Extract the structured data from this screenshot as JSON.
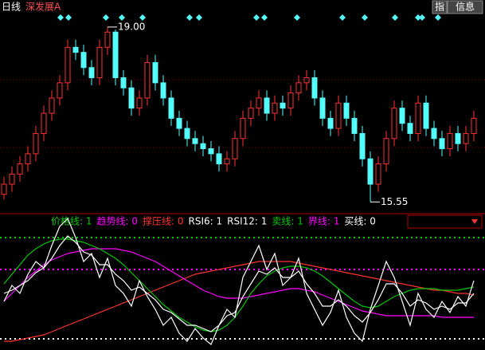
{
  "top_bar": {
    "period": "日线",
    "stock": "深发展A",
    "buttons": [
      "指",
      "信息"
    ]
  },
  "chart_data": [
    {
      "type": "candlestick",
      "up_color": "#ff3232",
      "down_color": "#54fcfc",
      "ylim": [
        15.35,
        19.25
      ],
      "open": [
        15.7,
        15.9,
        16.1,
        16.3,
        16.5,
        16.9,
        17.3,
        17.6,
        17.9,
        18.6,
        18.5,
        18.2,
        18.0,
        18.6,
        18.9,
        18.0,
        17.8,
        17.4,
        17.6,
        18.3,
        17.9,
        17.6,
        17.2,
        17.0,
        16.8,
        16.7,
        16.6,
        16.5,
        16.3,
        16.4,
        16.8,
        17.2,
        17.4,
        17.6,
        17.3,
        17.5,
        17.4,
        17.7,
        17.9,
        18.0,
        17.6,
        17.2,
        17.0,
        17.5,
        17.2,
        16.9,
        16.4,
        15.9,
        16.3,
        16.8,
        17.4,
        17.1,
        16.9,
        17.5,
        17.0,
        16.8,
        16.6,
        16.9,
        16.7,
        16.9
      ],
      "high": [
        16.05,
        16.25,
        16.45,
        16.65,
        17.05,
        17.45,
        17.75,
        18.05,
        18.75,
        18.75,
        18.65,
        18.35,
        18.75,
        19.0,
        18.95,
        18.15,
        17.95,
        17.75,
        18.45,
        18.45,
        18.05,
        17.75,
        17.35,
        17.15,
        16.95,
        16.85,
        16.75,
        16.65,
        16.55,
        16.95,
        17.35,
        17.55,
        17.75,
        17.75,
        17.65,
        17.65,
        17.85,
        18.05,
        18.15,
        18.15,
        17.75,
        17.35,
        17.65,
        17.65,
        17.35,
        17.05,
        16.55,
        16.45,
        16.95,
        17.55,
        17.55,
        17.25,
        17.65,
        17.65,
        17.15,
        16.95,
        17.05,
        17.05,
        17.05,
        17.35
      ],
      "low": [
        15.6,
        15.75,
        15.95,
        16.15,
        16.35,
        16.75,
        17.15,
        17.45,
        17.75,
        18.35,
        18.05,
        17.85,
        17.85,
        18.45,
        17.85,
        17.65,
        17.25,
        17.25,
        17.45,
        17.75,
        17.45,
        17.05,
        16.85,
        16.65,
        16.55,
        16.45,
        16.35,
        16.15,
        16.15,
        16.25,
        16.65,
        17.05,
        17.25,
        17.15,
        17.15,
        17.25,
        17.25,
        17.55,
        17.75,
        17.45,
        17.05,
        16.85,
        16.85,
        17.05,
        16.75,
        16.25,
        15.55,
        15.75,
        16.15,
        16.65,
        16.95,
        16.75,
        16.75,
        16.85,
        16.65,
        16.45,
        16.45,
        16.55,
        16.55,
        16.75
      ],
      "close": [
        15.9,
        16.1,
        16.3,
        16.5,
        16.9,
        17.3,
        17.6,
        17.9,
        18.6,
        18.5,
        18.2,
        18.0,
        18.6,
        18.9,
        18.0,
        17.8,
        17.4,
        17.6,
        18.3,
        17.9,
        17.6,
        17.2,
        17.0,
        16.8,
        16.7,
        16.6,
        16.5,
        16.3,
        16.4,
        16.8,
        17.2,
        17.4,
        17.6,
        17.3,
        17.5,
        17.4,
        17.7,
        17.9,
        18.0,
        17.6,
        17.2,
        17.0,
        17.5,
        17.2,
        16.9,
        16.4,
        15.9,
        16.3,
        16.8,
        17.4,
        17.1,
        16.9,
        17.5,
        17.0,
        16.8,
        16.6,
        16.9,
        16.7,
        16.9,
        17.2
      ],
      "annotations": [
        {
          "value": 19.0,
          "label": "19.00"
        },
        {
          "value": 15.55,
          "label": "15.55"
        }
      ]
    },
    {
      "type": "line",
      "ylim": [
        14.5,
        99
      ],
      "legend": [
        {
          "label": "价格线: 1",
          "color": "#00c800"
        },
        {
          "label": "趋势线: 0",
          "color": "#ff00ff"
        },
        {
          "label": "撑压线: 0",
          "color": "#ff3232"
        },
        {
          "label": "RSI6: 1",
          "color": "#ffffff"
        },
        {
          "label": "RSI12: 1",
          "color": "#ffffff"
        },
        {
          "label": "卖线: 1",
          "color": "#00c800"
        },
        {
          "label": "界线: 1",
          "color": "#ff00ff"
        },
        {
          "label": "买线: 0",
          "color": "#ffffff"
        }
      ],
      "levels": [
        {
          "value": 85,
          "color": "#00c800"
        },
        {
          "value": 65,
          "color": "#ff00ff"
        },
        {
          "value": 21.5,
          "color": "#ffffff"
        }
      ],
      "series": [
        {
          "color": "#ff3232",
          "values": [
            20,
            20,
            21,
            22,
            23,
            24,
            26,
            28,
            30,
            32,
            34,
            36,
            38,
            40,
            42,
            44,
            46,
            48,
            50,
            52,
            54,
            56,
            58,
            60,
            62,
            63,
            64,
            65,
            66,
            67,
            68,
            69,
            70,
            70,
            70,
            70,
            70,
            69,
            68,
            67,
            66,
            65,
            64,
            63,
            62,
            61,
            60,
            59,
            58,
            57,
            56,
            55,
            54,
            53,
            52,
            52,
            51,
            50,
            50,
            49
          ]
        },
        {
          "color": "#ff00ff",
          "values": [
            45,
            50,
            55,
            60,
            64,
            68,
            71,
            73,
            75,
            76,
            77,
            78,
            78,
            78,
            78,
            77,
            76,
            74,
            72,
            70,
            67,
            64,
            61,
            58,
            55,
            52,
            50,
            48,
            47,
            47,
            47,
            48,
            49,
            50,
            51,
            52,
            53,
            53,
            52,
            51,
            49,
            47,
            45,
            43,
            41,
            39,
            38,
            37,
            36,
            36,
            36,
            36,
            36,
            36,
            36,
            35,
            35,
            35,
            35,
            35
          ]
        },
        {
          "color": "#00c800",
          "values": [
            56,
            62,
            68,
            74,
            78,
            81,
            83,
            84,
            84,
            83,
            82,
            80,
            78,
            75,
            72,
            68,
            63,
            58,
            53,
            48,
            43,
            39,
            35,
            32,
            29,
            27,
            26,
            27,
            30,
            35,
            42,
            50,
            56,
            61,
            64,
            66,
            67,
            67,
            66,
            64,
            61,
            57,
            53,
            49,
            45,
            42,
            41,
            42,
            45,
            48,
            50,
            52,
            53,
            53,
            53,
            52,
            52,
            52,
            53,
            54
          ]
        },
        {
          "color": "#ffffff",
          "values": [
            50,
            52,
            55,
            58,
            63,
            66,
            72,
            80,
            86,
            82,
            76,
            74,
            68,
            68,
            62,
            58,
            52,
            54,
            50,
            46,
            40,
            38,
            34,
            30,
            30,
            28,
            26,
            30,
            36,
            38,
            48,
            56,
            64,
            62,
            66,
            60,
            60,
            64,
            56,
            50,
            42,
            42,
            46,
            42,
            36,
            32,
            38,
            46,
            56,
            56,
            50,
            42,
            46,
            44,
            40,
            42,
            40,
            44,
            44,
            50
          ]
        },
        {
          "color": "#ffffff",
          "values": [
            45,
            55,
            50,
            62,
            70,
            66,
            80,
            92,
            97,
            85,
            70,
            75,
            60,
            72,
            55,
            50,
            42,
            58,
            48,
            40,
            30,
            35,
            25,
            20,
            28,
            22,
            18,
            30,
            40,
            35,
            60,
            70,
            80,
            65,
            75,
            55,
            60,
            72,
            50,
            40,
            30,
            38,
            52,
            35,
            25,
            20,
            40,
            55,
            70,
            60,
            45,
            30,
            50,
            40,
            35,
            45,
            38,
            48,
            42,
            58
          ]
        }
      ]
    }
  ]
}
